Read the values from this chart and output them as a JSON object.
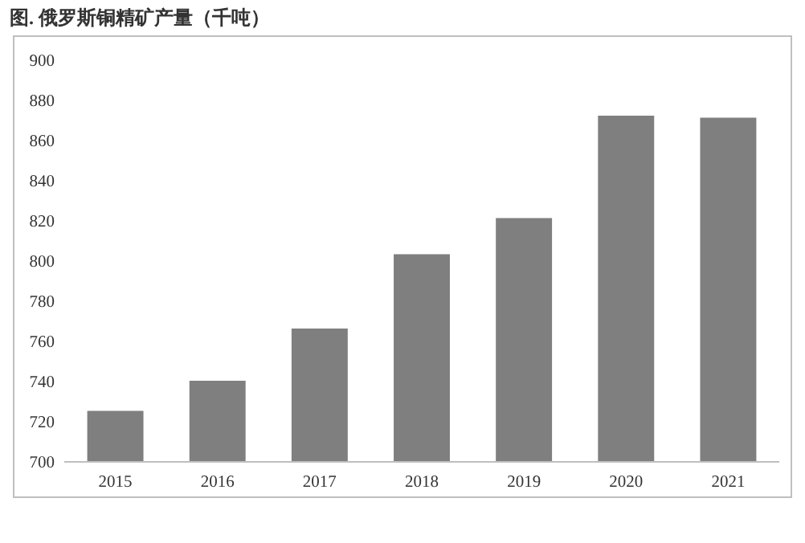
{
  "chart_data": {
    "type": "bar",
    "title": "图. 俄罗斯铜精矿产量（千吨）",
    "categories": [
      "2015",
      "2016",
      "2017",
      "2018",
      "2019",
      "2020",
      "2021"
    ],
    "values": [
      725,
      740,
      766,
      803,
      821,
      872,
      871
    ],
    "color": "#7f7f7f",
    "ylim": [
      700,
      900
    ],
    "yticks": [
      700,
      720,
      740,
      760,
      780,
      800,
      820,
      840,
      860,
      880,
      900
    ]
  }
}
